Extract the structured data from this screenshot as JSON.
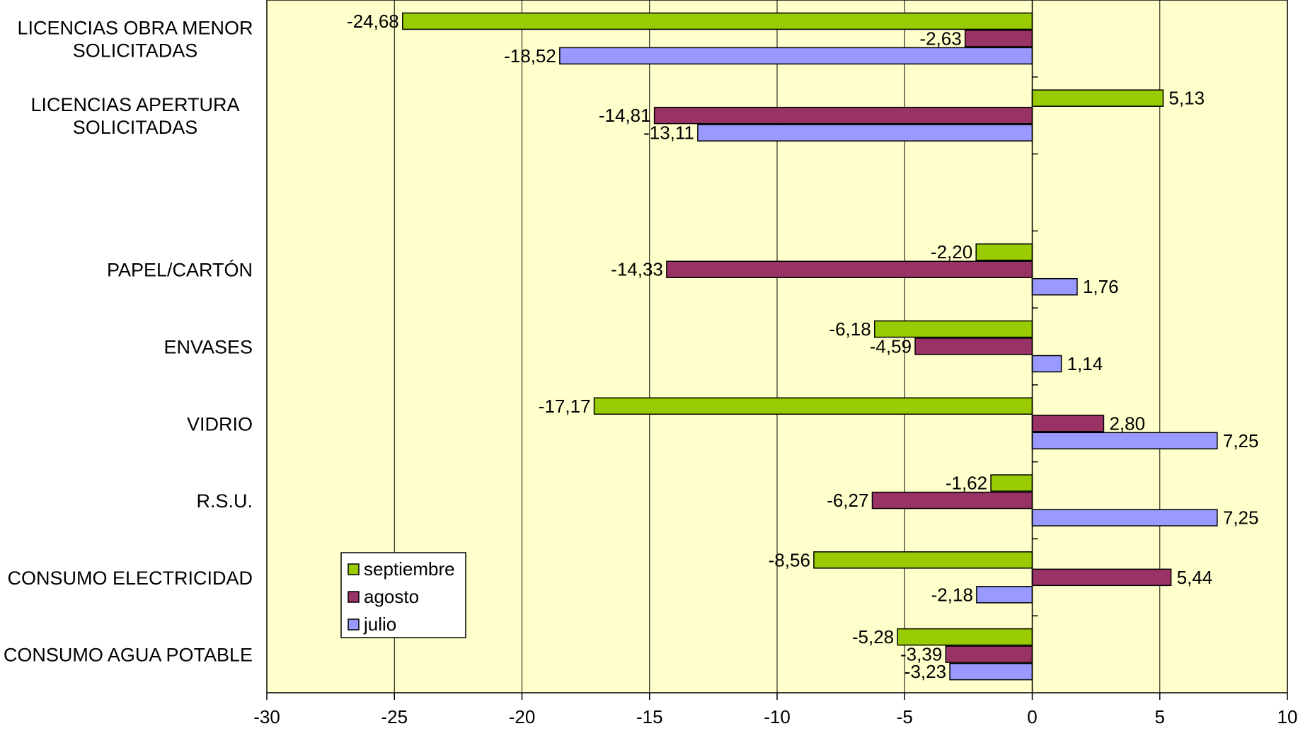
{
  "chart_data": {
    "type": "bar",
    "orientation": "horizontal",
    "categories": [
      "LICENCIAS OBRA MENOR|SOLICITADAS",
      "LICENCIAS APERTURA|SOLICITADAS",
      "",
      "PAPEL/CARTÓN",
      "ENVASES",
      "VIDRIO",
      "R.S.U.",
      "CONSUMO ELECTRICIDAD",
      "CONSUMO AGUA POTABLE"
    ],
    "series": [
      {
        "name": "septiembre",
        "color": "#99CC00",
        "values": [
          -24.68,
          5.13,
          null,
          -2.2,
          -6.18,
          -17.17,
          -1.62,
          -8.56,
          -5.28
        ],
        "labels": [
          "-24,68",
          "5,13",
          "",
          "-2,20",
          "-6,18",
          "-17,17",
          "-1,62",
          "-8,56",
          "-5,28"
        ],
        "label_colors": [
          "#000000",
          "#000000",
          "#000000",
          "#000000",
          "#000000",
          "#000000",
          "#000000",
          "#FF0000",
          "#000000"
        ]
      },
      {
        "name": "agosto",
        "color": "#993366",
        "values": [
          -2.63,
          -14.81,
          null,
          -14.33,
          -4.59,
          2.8,
          -6.27,
          5.44,
          -3.39
        ],
        "labels": [
          "-2,63",
          "-14,81",
          "",
          "-14,33",
          "-4,59",
          "2,80",
          "-6,27",
          "5,44",
          "-3,39"
        ]
      },
      {
        "name": "julio",
        "color": "#9999FF",
        "values": [
          -18.52,
          -13.11,
          null,
          1.76,
          1.14,
          7.25,
          7.25,
          -2.18,
          -3.23
        ],
        "labels": [
          "-18,52",
          "-13,11",
          "",
          "1,76",
          "1,14",
          "7,25",
          "7,25",
          "-2,18",
          "-3,23"
        ]
      }
    ],
    "xlim": [
      -30,
      10
    ],
    "xticks": [
      -30,
      -25,
      -20,
      -15,
      -10,
      -5,
      0,
      5,
      10
    ],
    "xtick_labels": [
      "-30",
      "-25",
      "-20",
      "-15",
      "-10",
      "-5",
      "0",
      "5",
      "10"
    ],
    "grid": true,
    "plot_background": "#FFFFCC",
    "legend_position": "bottom-left"
  }
}
